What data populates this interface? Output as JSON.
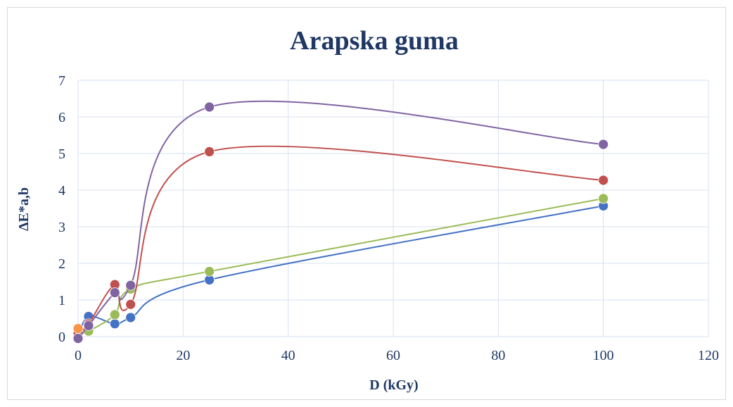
{
  "chart_data": {
    "type": "scatter",
    "title": "Arapska guma",
    "xlabel": "D (kGy)",
    "ylabel": "ΔE*a,b",
    "xlim": [
      0,
      120
    ],
    "ylim": [
      0,
      7
    ],
    "xticks": [
      0,
      20,
      40,
      60,
      80,
      100,
      120
    ],
    "yticks": [
      0,
      1,
      2,
      3,
      4,
      5,
      6,
      7
    ],
    "grid": true,
    "legend": "none",
    "lines": "smoothed",
    "series": [
      {
        "color": "#4472c4",
        "x": [
          0,
          2,
          7,
          10,
          25,
          100
        ],
        "y": [
          0.0,
          0.55,
          0.35,
          0.52,
          1.55,
          3.57
        ]
      },
      {
        "color": "#9bbb59",
        "x": [
          0,
          2,
          7,
          10,
          25,
          100
        ],
        "y": [
          0.05,
          0.15,
          0.6,
          1.3,
          1.78,
          3.77
        ]
      },
      {
        "color": "#c0504d",
        "x": [
          0,
          2,
          7,
          10,
          25,
          100
        ],
        "y": [
          0.1,
          0.35,
          1.42,
          0.88,
          5.05,
          4.27
        ]
      },
      {
        "color": "#8064a2",
        "x": [
          0,
          2,
          7,
          10,
          25,
          100
        ],
        "y": [
          -0.05,
          0.3,
          1.2,
          1.4,
          6.27,
          5.25
        ]
      },
      {
        "color": "#f79646",
        "x": [
          0
        ],
        "y": [
          0.22
        ]
      }
    ]
  }
}
